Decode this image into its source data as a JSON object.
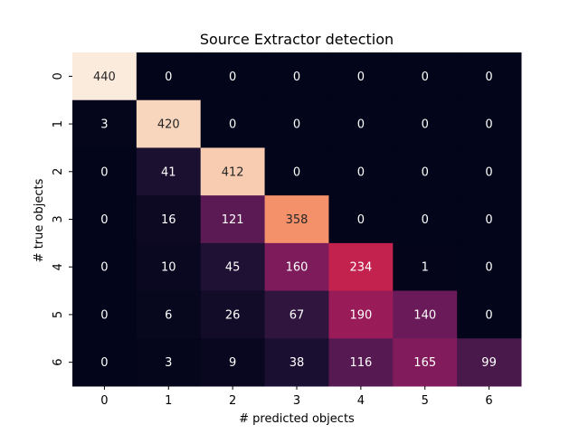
{
  "chart_data": {
    "type": "heatmap",
    "title": "Source Extractor detection",
    "xlabel": "# predicted objects",
    "ylabel": "# true objects",
    "x_categories": [
      "0",
      "1",
      "2",
      "3",
      "4",
      "5",
      "6"
    ],
    "y_categories": [
      "0",
      "1",
      "2",
      "3",
      "4",
      "5",
      "6"
    ],
    "values": [
      [
        440,
        0,
        0,
        0,
        0,
        0,
        0
      ],
      [
        3,
        420,
        0,
        0,
        0,
        0,
        0
      ],
      [
        0,
        41,
        412,
        0,
        0,
        0,
        0
      ],
      [
        0,
        16,
        121,
        358,
        0,
        0,
        0
      ],
      [
        0,
        10,
        45,
        160,
        234,
        1,
        0
      ],
      [
        0,
        6,
        26,
        67,
        190,
        140,
        0
      ],
      [
        0,
        3,
        9,
        38,
        116,
        165,
        99
      ]
    ],
    "value_range": [
      0,
      440
    ],
    "colormap": "rocket",
    "colorbar": false,
    "annotations": true
  }
}
